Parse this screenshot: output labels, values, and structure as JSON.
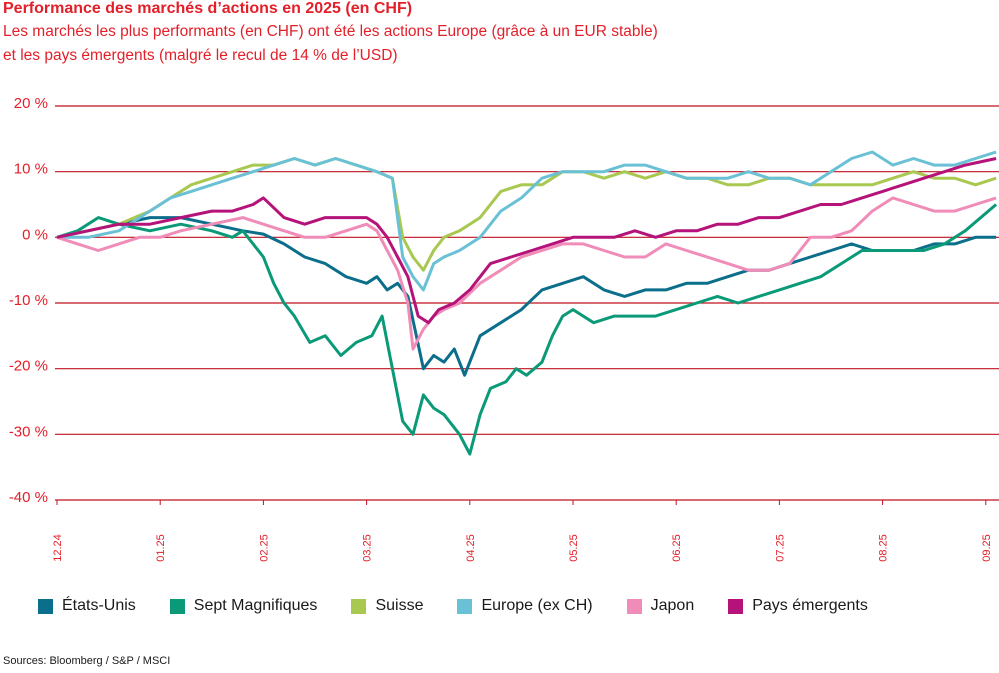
{
  "title": "Performance des marchés d’actions en 2025 (en CHF)",
  "subtitle_line1": "Les marchés les plus performants (en CHF) ont été les actions Europe (grâce à un EUR stable)",
  "subtitle_line2": "et les pays émergents (malgré le recul de 14 % de l’USD)",
  "source": "Sources: Bloomberg / S&P / MSCI",
  "chart_data": {
    "type": "line",
    "ylim": [
      -40,
      20
    ],
    "yticks": [
      20,
      10,
      0,
      -10,
      -20,
      -30,
      -40
    ],
    "ytick_labels": [
      "20 %",
      "10 %",
      "0 %",
      "-10 %",
      "-20 %",
      "-30 %",
      "-40 %"
    ],
    "xlim": [
      0,
      9.1
    ],
    "xticks": [
      0,
      1,
      2,
      3,
      4,
      5,
      6,
      7,
      8,
      9
    ],
    "xtick_labels": [
      "12.24",
      "01.25",
      "02.25",
      "03.25",
      "04.25",
      "05.25",
      "06.25",
      "07.25",
      "08.25",
      "09.25"
    ],
    "grid": true,
    "legend_position": "bottom",
    "series": [
      {
        "name": "États-Unis",
        "color": "#0b6e8a",
        "x": [
          0,
          0.3,
          0.6,
          0.9,
          1.2,
          1.5,
          1.8,
          2.0,
          2.2,
          2.4,
          2.6,
          2.8,
          3.0,
          3.1,
          3.2,
          3.3,
          3.4,
          3.55,
          3.65,
          3.75,
          3.85,
          3.95,
          4.1,
          4.3,
          4.5,
          4.7,
          4.9,
          5.1,
          5.3,
          5.5,
          5.7,
          5.9,
          6.1,
          6.3,
          6.5,
          6.7,
          6.9,
          7.1,
          7.3,
          7.5,
          7.7,
          7.9,
          8.1,
          8.3,
          8.5,
          8.7,
          8.9,
          9.1
        ],
        "values": [
          0,
          1,
          2,
          3,
          3,
          2,
          1,
          0.5,
          -1,
          -3,
          -4,
          -6,
          -7,
          -6,
          -8,
          -7,
          -9,
          -20,
          -18,
          -19,
          -17,
          -21,
          -15,
          -13,
          -11,
          -8,
          -7,
          -6,
          -8,
          -9,
          -8,
          -8,
          -7,
          -7,
          -6,
          -5,
          -5,
          -4,
          -3,
          -2,
          -1,
          -2,
          -2,
          -2,
          -1,
          -1,
          0,
          0
        ]
      },
      {
        "name": "Sept Magnifiques",
        "color": "#0a9a78",
        "x": [
          0,
          0.2,
          0.4,
          0.6,
          0.9,
          1.2,
          1.5,
          1.7,
          1.8,
          1.9,
          2.0,
          2.1,
          2.2,
          2.3,
          2.45,
          2.6,
          2.75,
          2.9,
          3.05,
          3.15,
          3.25,
          3.35,
          3.45,
          3.55,
          3.65,
          3.75,
          3.9,
          4.0,
          4.1,
          4.2,
          4.35,
          4.45,
          4.55,
          4.7,
          4.8,
          4.9,
          5.0,
          5.2,
          5.4,
          5.6,
          5.8,
          6.0,
          6.2,
          6.4,
          6.6,
          6.8,
          7.0,
          7.2,
          7.4,
          7.6,
          7.8,
          8.0,
          8.2,
          8.4,
          8.6,
          8.8,
          9.1
        ],
        "values": [
          0,
          1,
          3,
          2,
          1,
          2,
          1,
          0,
          1,
          -1,
          -3,
          -7,
          -10,
          -12,
          -16,
          -15,
          -18,
          -16,
          -15,
          -12,
          -20,
          -28,
          -30,
          -24,
          -26,
          -27,
          -30,
          -33,
          -27,
          -23,
          -22,
          -20,
          -21,
          -19,
          -15,
          -12,
          -11,
          -13,
          -12,
          -12,
          -12,
          -11,
          -10,
          -9,
          -10,
          -9,
          -8,
          -7,
          -6,
          -4,
          -2,
          -2,
          -2,
          -2,
          -1,
          1,
          5
        ]
      },
      {
        "name": "Suisse",
        "color": "#a8c850",
        "x": [
          0,
          0.3,
          0.6,
          0.9,
          1.1,
          1.3,
          1.5,
          1.7,
          1.9,
          2.1,
          2.3,
          2.5,
          2.7,
          2.9,
          3.1,
          3.25,
          3.35,
          3.45,
          3.55,
          3.65,
          3.75,
          3.9,
          4.1,
          4.3,
          4.5,
          4.7,
          4.9,
          5.1,
          5.3,
          5.5,
          5.7,
          5.9,
          6.1,
          6.3,
          6.5,
          6.7,
          6.9,
          7.1,
          7.3,
          7.5,
          7.7,
          7.9,
          8.1,
          8.3,
          8.5,
          8.7,
          8.9,
          9.1
        ],
        "values": [
          0,
          1,
          2,
          4,
          6,
          8,
          9,
          10,
          11,
          11,
          12,
          11,
          12,
          11,
          10,
          9,
          0,
          -3,
          -5,
          -2,
          0,
          1,
          3,
          7,
          8,
          8,
          10,
          10,
          9,
          10,
          9,
          10,
          9,
          9,
          8,
          8,
          9,
          9,
          8,
          8,
          8,
          8,
          9,
          10,
          9,
          9,
          8,
          9
        ]
      },
      {
        "name": "Europe (ex CH)",
        "color": "#6ac1d6",
        "x": [
          0,
          0.3,
          0.6,
          0.9,
          1.1,
          1.3,
          1.5,
          1.7,
          1.9,
          2.1,
          2.3,
          2.5,
          2.7,
          2.9,
          3.1,
          3.25,
          3.35,
          3.45,
          3.55,
          3.65,
          3.75,
          3.9,
          4.1,
          4.3,
          4.5,
          4.7,
          4.9,
          5.1,
          5.3,
          5.5,
          5.7,
          5.9,
          6.1,
          6.3,
          6.5,
          6.7,
          6.9,
          7.1,
          7.3,
          7.5,
          7.7,
          7.9,
          8.1,
          8.3,
          8.5,
          8.7,
          8.9,
          9.1
        ],
        "values": [
          0,
          0,
          1,
          4,
          6,
          7,
          8,
          9,
          10,
          11,
          12,
          11,
          12,
          11,
          10,
          9,
          -3,
          -6,
          -8,
          -4,
          -3,
          -2,
          0,
          4,
          6,
          9,
          10,
          10,
          10,
          11,
          11,
          10,
          9,
          9,
          9,
          10,
          9,
          9,
          8,
          10,
          12,
          13,
          11,
          12,
          11,
          11,
          12,
          13
        ]
      },
      {
        "name": "Japon",
        "color": "#f08cb8",
        "x": [
          0,
          0.2,
          0.4,
          0.6,
          0.8,
          1.0,
          1.2,
          1.5,
          1.8,
          2.0,
          2.2,
          2.4,
          2.6,
          2.8,
          3.0,
          3.1,
          3.2,
          3.3,
          3.4,
          3.45,
          3.55,
          3.65,
          3.75,
          3.9,
          4.1,
          4.3,
          4.5,
          4.7,
          4.9,
          5.1,
          5.3,
          5.5,
          5.7,
          5.9,
          6.1,
          6.3,
          6.5,
          6.7,
          6.9,
          7.1,
          7.3,
          7.5,
          7.7,
          7.9,
          8.1,
          8.3,
          8.5,
          8.7,
          8.9,
          9.1
        ],
        "values": [
          0,
          -1,
          -2,
          -1,
          0,
          0,
          1,
          2,
          3,
          2,
          1,
          0,
          0,
          1,
          2,
          1,
          -2,
          -5,
          -10,
          -17,
          -14,
          -12,
          -11,
          -10,
          -7,
          -5,
          -3,
          -2,
          -1,
          -1,
          -2,
          -3,
          -3,
          -1,
          -2,
          -3,
          -4,
          -5,
          -5,
          -4,
          0,
          0,
          1,
          4,
          6,
          5,
          4,
          4,
          5,
          6
        ]
      },
      {
        "name": "Pays émergents",
        "color": "#b5137a",
        "x": [
          0,
          0.3,
          0.6,
          0.9,
          1.2,
          1.5,
          1.7,
          1.9,
          2.0,
          2.2,
          2.4,
          2.6,
          2.8,
          3.0,
          3.1,
          3.2,
          3.3,
          3.4,
          3.5,
          3.6,
          3.7,
          3.85,
          4.0,
          4.2,
          4.4,
          4.6,
          4.8,
          5.0,
          5.2,
          5.4,
          5.6,
          5.8,
          6.0,
          6.2,
          6.4,
          6.6,
          6.8,
          7.0,
          7.2,
          7.4,
          7.6,
          7.8,
          8.0,
          8.2,
          8.4,
          8.6,
          8.8,
          9.1
        ],
        "values": [
          0,
          1,
          2,
          2,
          3,
          4,
          4,
          5,
          6,
          3,
          2,
          3,
          3,
          3,
          2,
          0,
          -3,
          -6,
          -12,
          -13,
          -11,
          -10,
          -8,
          -4,
          -3,
          -2,
          -1,
          0,
          0,
          0,
          1,
          0,
          1,
          1,
          2,
          2,
          3,
          3,
          4,
          5,
          5,
          6,
          7,
          8,
          9,
          10,
          11,
          12
        ]
      }
    ]
  }
}
